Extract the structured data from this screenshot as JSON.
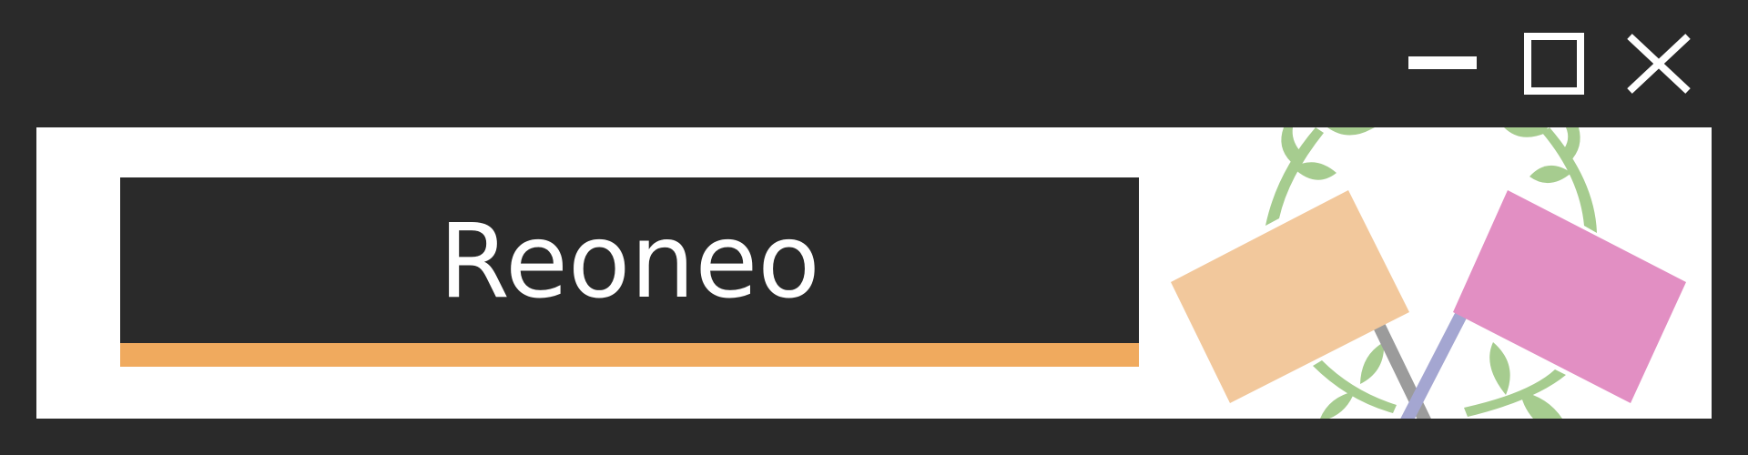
{
  "app": {
    "title": "Reoneo"
  },
  "window_controls": {
    "minimize_icon": "minimize-icon",
    "maximize_icon": "maximize-icon",
    "close_icon": "close-icon"
  },
  "illustration": {
    "subject": "crossed-flags-icon"
  },
  "colors": {
    "background": "#2a2a2a",
    "content_bg": "#ffffff",
    "accent": "#f0aa5e",
    "flag_left": "#f2c89c",
    "flag_right": "#e28fc3",
    "pole_left": "#9b9b9b",
    "pole_right": "#a4a6d1",
    "laurel": "#a6cc8f"
  }
}
